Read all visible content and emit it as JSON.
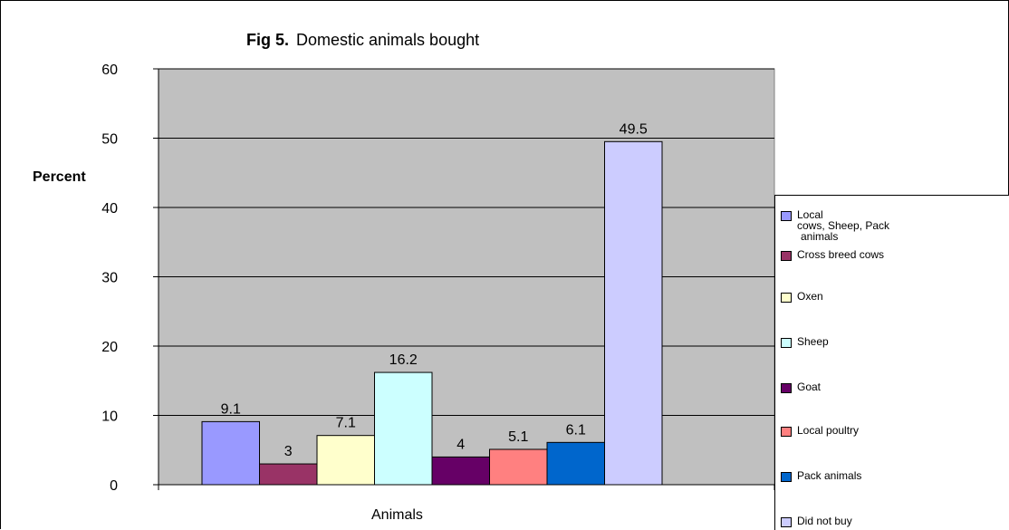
{
  "chart_data": {
    "type": "bar",
    "title_prefix": "Fig 5.",
    "title": "Domestic animals bought",
    "xlabel": "Animals",
    "ylabel": "Percent",
    "ylim": [
      0,
      60
    ],
    "yticks": [
      0,
      10,
      20,
      30,
      40,
      50,
      60
    ],
    "grid": true,
    "legend_position": "right",
    "series": [
      {
        "name": "Local cows, Sheep, Pack animals",
        "value": 9.1,
        "label": "9.1",
        "color": "#9999ff"
      },
      {
        "name": "Cross breed cows",
        "value": 3,
        "label": "3",
        "color": "#993366"
      },
      {
        "name": "Oxen",
        "value": 7.1,
        "label": "7.1",
        "color": "#ffffcc"
      },
      {
        "name": "Sheep",
        "value": 16.2,
        "label": "16.2",
        "color": "#ccffff"
      },
      {
        "name": "Goat",
        "value": 4,
        "label": "4",
        "color": "#660066"
      },
      {
        "name": "Local poultry",
        "value": 5.1,
        "label": "5.1",
        "color": "#ff8080"
      },
      {
        "name": "Pack animals",
        "value": 6.1,
        "label": "6.1",
        "color": "#0066cc"
      },
      {
        "name": "Did not buy",
        "value": 49.5,
        "label": "49.5",
        "color": "#ccccff"
      }
    ],
    "legend_labels": [
      {
        "lines": [
          "Local",
          "cows, Sheep, Pack",
          " animals"
        ]
      },
      {
        "lines": [
          "Cross breed cows"
        ]
      },
      {
        "lines": [
          "Oxen"
        ]
      },
      {
        "lines": [
          "Sheep"
        ]
      },
      {
        "lines": [
          "Goat"
        ]
      },
      {
        "lines": [
          "Local poultry"
        ]
      },
      {
        "lines": [
          "Pack animals"
        ]
      },
      {
        "lines": [
          "Did not buy"
        ]
      }
    ],
    "plot_background": "#c0c0c0"
  }
}
